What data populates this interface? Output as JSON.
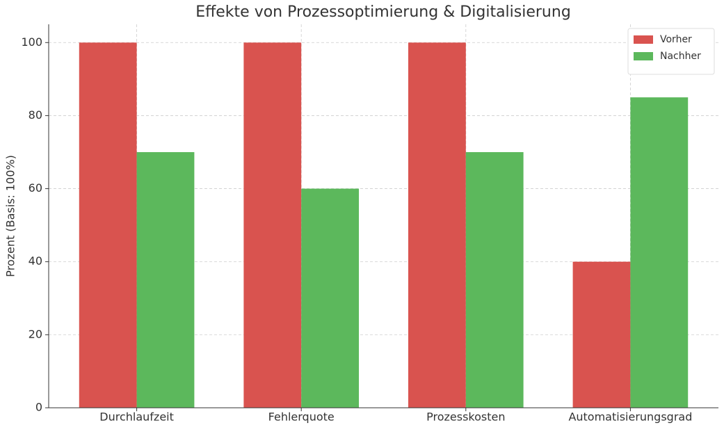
{
  "chart_data": {
    "type": "bar",
    "title": "Effekte von Prozessoptimierung & Digitalisierung",
    "y_label": "Prozent (Basis: 100%)",
    "categories": [
      "Durchlaufzeit",
      "Fehlerquote",
      "Prozesskosten",
      "Automatisierungsgrad"
    ],
    "series": [
      {
        "name": "Vorher",
        "color": "#d9534f",
        "values": [
          100,
          100,
          100,
          40
        ]
      },
      {
        "name": "Nachher",
        "color": "#5cb85c",
        "values": [
          70,
          60,
          70,
          85
        ]
      }
    ],
    "ylim": [
      0,
      105
    ],
    "yticks": [
      0,
      20,
      40,
      60,
      80,
      100
    ],
    "grid": true,
    "legend": "upper-right"
  }
}
